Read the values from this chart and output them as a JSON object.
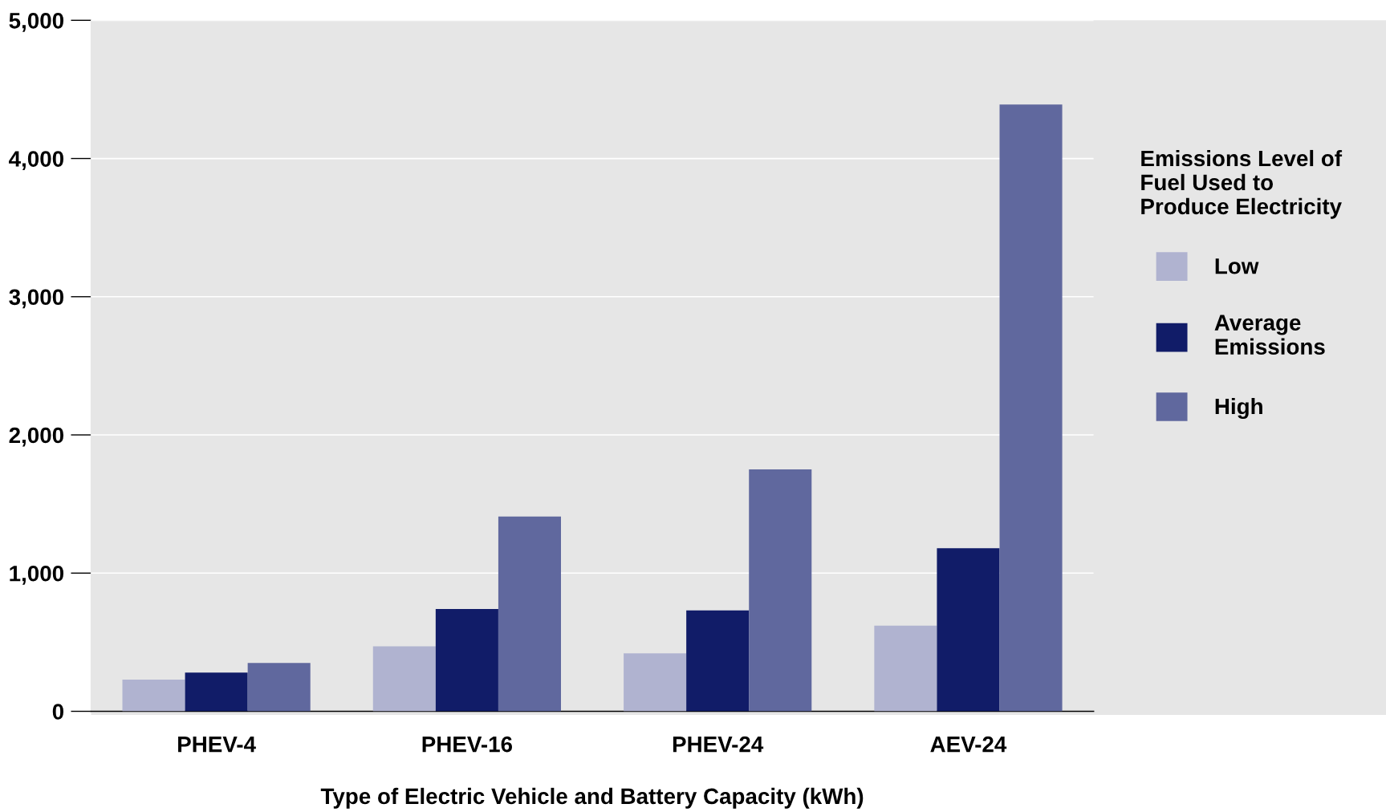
{
  "chart_data": {
    "type": "bar",
    "xlabel": "Type of Electric Vehicle and Battery Capacity (kWh)",
    "legend_title": "Emissions Level of\nFuel Used to\nProduce Electricity",
    "categories": [
      "PHEV-4",
      "PHEV-16",
      "PHEV-24",
      "AEV-24"
    ],
    "series": [
      {
        "name": "Low",
        "color": "#b0b3d0",
        "values": [
          230,
          470,
          420,
          620
        ]
      },
      {
        "name": "Average\nEmissions",
        "color": "#111c68",
        "values": [
          280,
          740,
          730,
          1180
        ]
      },
      {
        "name": "High",
        "color": "#60689e",
        "values": [
          350,
          1410,
          1750,
          4390
        ]
      }
    ],
    "ylim": [
      0,
      5000
    ],
    "yticks": [
      {
        "value": 0,
        "label": "0"
      },
      {
        "value": 1000,
        "label": "1,000"
      },
      {
        "value": 2000,
        "label": "2,000"
      },
      {
        "value": 3000,
        "label": "3,000"
      },
      {
        "value": 4000,
        "label": "4,000"
      },
      {
        "value": 5000,
        "label": "5,000"
      }
    ],
    "grid": "y",
    "legend": "right"
  }
}
